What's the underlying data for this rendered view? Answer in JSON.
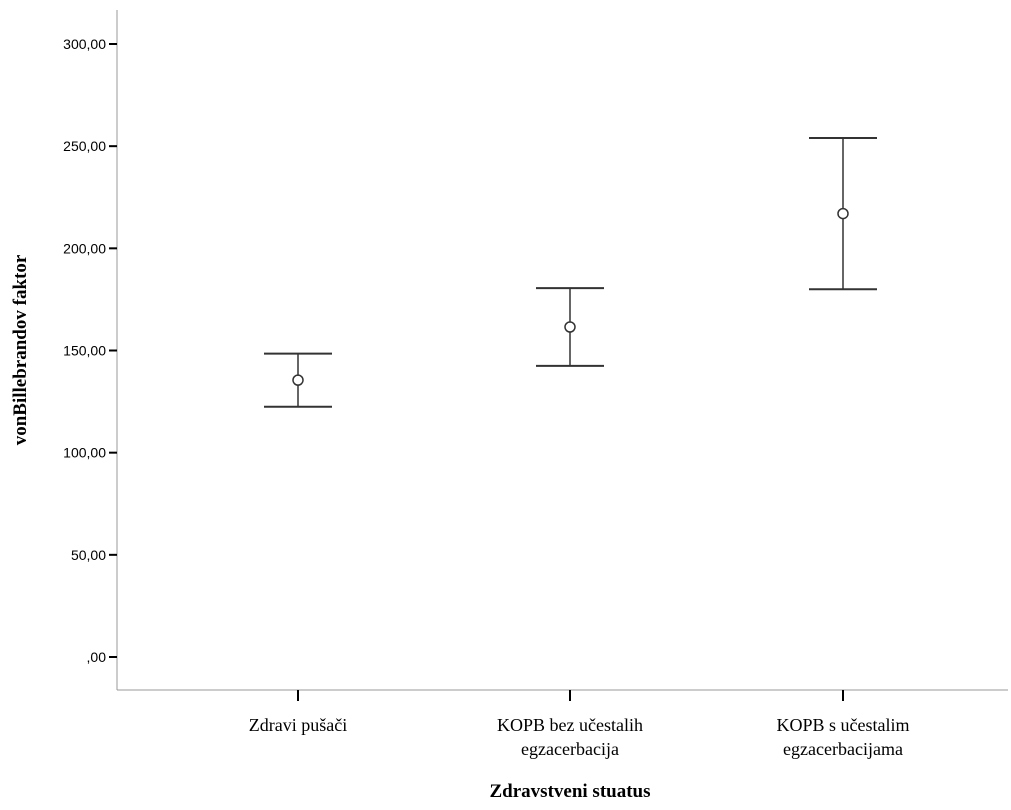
{
  "chart_data": {
    "type": "errorbar",
    "xlabel": "Zdravstveni stuatus",
    "ylabel": "vonBillebrandov faktor",
    "ylim": [
      -15,
      318
    ],
    "yticks": [
      0,
      50,
      100,
      150,
      200,
      250,
      300
    ],
    "ytick_labels": [
      ",00",
      "50,00",
      "100,00",
      "150,00",
      "200,00",
      "250,00",
      "300,00"
    ],
    "categories": [
      [
        "Zdravi pušači"
      ],
      [
        "KOPB bez učestalih",
        "egzacerbacija"
      ],
      [
        "KOPB s učestalim",
        "egzacerbacijama"
      ]
    ],
    "points": [
      {
        "mean": 135.5,
        "lower": 122.5,
        "upper": 148.5
      },
      {
        "mean": 161.5,
        "lower": 142.5,
        "upper": 180.5
      },
      {
        "mean": 217.0,
        "lower": 180.0,
        "upper": 254.0
      }
    ],
    "grid": false,
    "legend": "none",
    "colors": {
      "line": "#333333",
      "axis": "#999999",
      "text": "#000000"
    }
  }
}
